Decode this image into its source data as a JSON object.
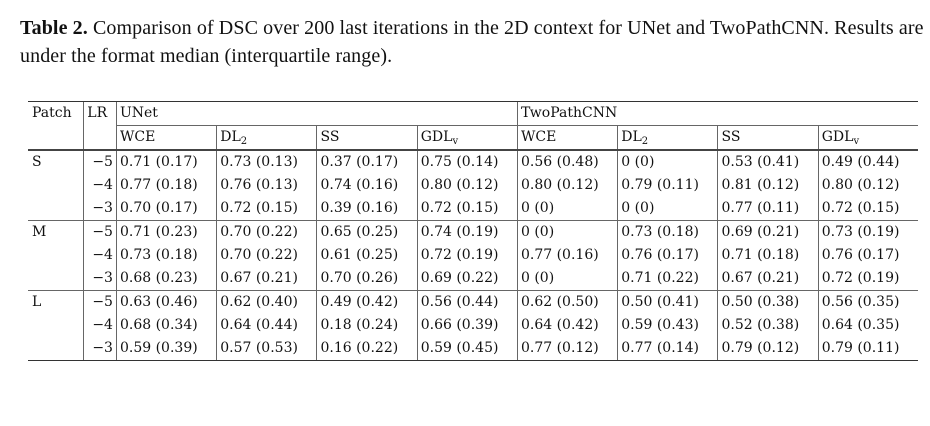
{
  "caption": {
    "label": "Table 2.",
    "text": " Comparison of DSC over 200 last iterations in the 2D context for UNet and TwoPathCNN. Results are under the format median (interquartile range)."
  },
  "table": {
    "header": {
      "patch": "Patch",
      "lr": "LR",
      "groups": [
        "UNet",
        "TwoPathCNN"
      ],
      "metrics": [
        {
          "base": "WCE",
          "sub": ""
        },
        {
          "base": "DL",
          "sub": "2"
        },
        {
          "base": "SS",
          "sub": ""
        },
        {
          "base": "GDL",
          "sub": "v"
        },
        {
          "base": "WCE",
          "sub": ""
        },
        {
          "base": "DL",
          "sub": "2"
        },
        {
          "base": "SS",
          "sub": ""
        },
        {
          "base": "GDL",
          "sub": "v"
        }
      ]
    },
    "groups": [
      {
        "patch": "S",
        "rows": [
          {
            "lr": "−5",
            "cells": [
              "0.71 (0.17)",
              "0.73 (0.13)",
              "0.37 (0.17)",
              "0.75 (0.14)",
              "0.56 (0.48)",
              "0 (0)",
              "0.53 (0.41)",
              "0.49 (0.44)"
            ]
          },
          {
            "lr": "−4",
            "cells": [
              "0.77 (0.18)",
              "0.76 (0.13)",
              "0.74 (0.16)",
              "0.80 (0.12)",
              "0.80 (0.12)",
              "0.79 (0.11)",
              "0.81 (0.12)",
              "0.80 (0.12)"
            ]
          },
          {
            "lr": "−3",
            "cells": [
              "0.70 (0.17)",
              "0.72 (0.15)",
              "0.39 (0.16)",
              "0.72 (0.15)",
              "0 (0)",
              "0 (0)",
              "0.77 (0.11)",
              "0.72 (0.15)"
            ]
          }
        ]
      },
      {
        "patch": "M",
        "rows": [
          {
            "lr": "−5",
            "cells": [
              "0.71 (0.23)",
              "0.70 (0.22)",
              "0.65 (0.25)",
              "0.74 (0.19)",
              "0 (0)",
              "0.73 (0.18)",
              "0.69 (0.21)",
              "0.73 (0.19)"
            ]
          },
          {
            "lr": "−4",
            "cells": [
              "0.73 (0.18)",
              "0.70 (0.22)",
              "0.61 (0.25)",
              "0.72 (0.19)",
              "0.77 (0.16)",
              "0.76 (0.17)",
              "0.71 (0.18)",
              "0.76 (0.17)"
            ]
          },
          {
            "lr": "−3",
            "cells": [
              "0.68 (0.23)",
              "0.67 (0.21)",
              "0.70 (0.26)",
              "0.69 (0.22)",
              "0 (0)",
              "0.71 (0.22)",
              "0.67 (0.21)",
              "0.72 (0.19)"
            ]
          }
        ]
      },
      {
        "patch": "L",
        "rows": [
          {
            "lr": "−5",
            "cells": [
              "0.63 (0.46)",
              "0.62 (0.40)",
              "0.49 (0.42)",
              "0.56 (0.44)",
              "0.62 (0.50)",
              "0.50 (0.41)",
              "0.50 (0.38)",
              "0.56 (0.35)"
            ]
          },
          {
            "lr": "−4",
            "cells": [
              "0.68 (0.34)",
              "0.64 (0.44)",
              "0.18 (0.24)",
              "0.66 (0.39)",
              "0.64 (0.42)",
              "0.59 (0.43)",
              "0.52 (0.38)",
              "0.64 (0.35)"
            ]
          },
          {
            "lr": "−3",
            "cells": [
              "0.59 (0.39)",
              "0.57 (0.53)",
              "0.16 (0.22)",
              "0.59 (0.45)",
              "0.77 (0.12)",
              "0.77 (0.14)",
              "0.79 (0.12)",
              "0.79 (0.11)"
            ]
          }
        ]
      }
    ]
  }
}
